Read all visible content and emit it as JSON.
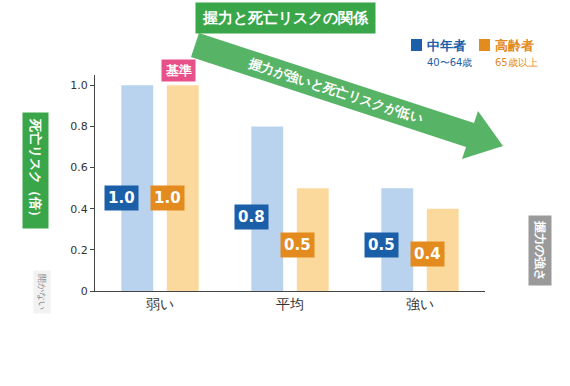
{
  "chart_data": {
    "type": "bar",
    "title": "握力と死亡リスクの関係",
    "y_label": "死亡リスク（倍）",
    "categories": [
      "弱い",
      "平均",
      "強い"
    ],
    "series": [
      {
        "name": "中年者",
        "color": "#b9d3ee",
        "values": [
          1,
          0.8,
          0.5
        ],
        "value_labels": [
          "1.0",
          "0.8",
          "0.5"
        ]
      },
      {
        "name": "高齢者",
        "color": "#fbd89b",
        "values": [
          1,
          0.5,
          0.4
        ],
        "value_labels": [
          "1.0",
          "0.5",
          "0.4"
        ]
      }
    ],
    "annotations": [
      "40〜64歳",
      "65歳以上",
      "基準",
      "握力が強いと死亡リスクが低い",
      "握力の強さ",
      "開かない"
    ],
    "ylim": [
      0,
      1.05
    ],
    "yticks": [
      0,
      0.2,
      0.4,
      0.6,
      0.8,
      {
        "value": 1,
        "label": "1.0"
      }
    ],
    "grid": false,
    "legend": "upper right",
    "data_labels": true
  }
}
